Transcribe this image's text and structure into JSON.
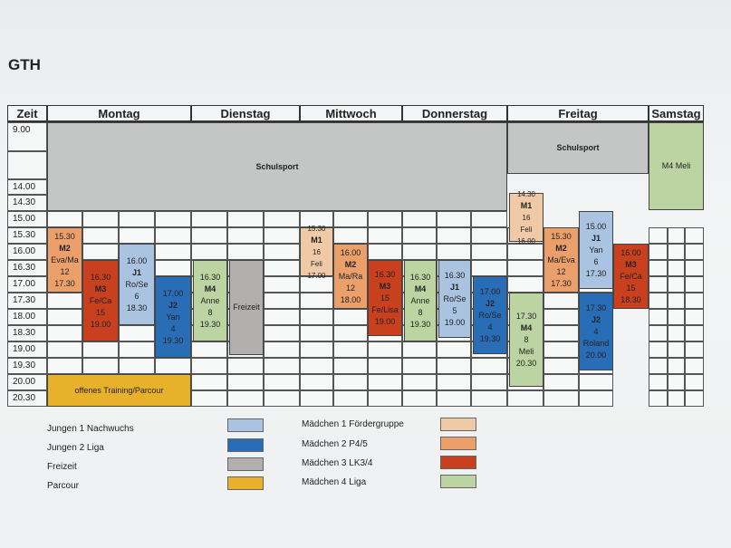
{
  "title": "GTH",
  "header": {
    "zeit": "Zeit",
    "days": [
      "Montag",
      "Dienstag",
      "Mittwoch",
      "Donnerstag",
      "Freitag",
      "Samstag"
    ]
  },
  "times": [
    "9.00",
    "",
    "14.00",
    "14.30",
    "15.00",
    "15.30",
    "16.00",
    "16.30",
    "17.00",
    "17.30",
    "18.00",
    "18.30",
    "19.00",
    "19.30",
    "20.00",
    "20.30"
  ],
  "colors": {
    "j1": "#a9c3e0",
    "j2": "#2a6db7",
    "freizeit": "#b1b0ae",
    "parcour": "#e7b12c",
    "m1": "#f0c9a7",
    "m2": "#eba06c",
    "m3": "#c9401f",
    "m4": "#bcd4a2",
    "schulsport": "#c4c5c5"
  },
  "blocks": {
    "schulsport_main": "Schulsport",
    "schulsport_fri": "Schulsport",
    "sat_m4": "M4 Meli",
    "mon_m2": [
      "15.30",
      "M2",
      "Eva/Ma",
      "12",
      "17.30"
    ],
    "mon_m3": [
      "16.30",
      "M3",
      "Fe/Ca",
      "15",
      "19.00"
    ],
    "mon_j1": [
      "16.00",
      "J1",
      "Ro/Se",
      "6",
      "18.30"
    ],
    "mon_j2": [
      "17.00",
      "J2",
      "Yan",
      "4",
      "19.30"
    ],
    "mon_parcour": "offenes Training/Parcour",
    "tue_m4": [
      "16.30",
      "M4",
      "Anne",
      "8",
      "19.30"
    ],
    "tue_freizeit": "Freizeit",
    "wed_m1": [
      "15.30",
      "M1",
      "16",
      "Feli",
      "17.00"
    ],
    "wed_m2": [
      "16.00",
      "M2",
      "Ma/Ra",
      "12",
      "18.00"
    ],
    "wed_m3": [
      "16.30",
      "M3",
      "15",
      "Fe/Lisa",
      "19.00"
    ],
    "thu_m4": [
      "16.30",
      "M4",
      "Anne",
      "8",
      "19.30"
    ],
    "thu_j1": [
      "16.30",
      "J1",
      "Ro/Se",
      "5",
      "19.00"
    ],
    "thu_j2": [
      "17.00",
      "J2",
      "Ro/Se",
      "4",
      "19.30"
    ],
    "fri_m1": [
      "14.30",
      "M1",
      "16",
      "Feli",
      "16.00"
    ],
    "fri_m2": [
      "15.30",
      "M2",
      "Ma/Eva",
      "12",
      "17.30"
    ],
    "fri_j1": [
      "15.00",
      "J1",
      "Yan",
      "6",
      "17.30"
    ],
    "fri_m3": [
      "16.00",
      "M3",
      "Fe/Ca",
      "15",
      "18.30"
    ],
    "fri_m4": [
      "17.30",
      "M4",
      "8",
      "Meli",
      "20.30"
    ],
    "fri_j2": [
      "17.30",
      "J2",
      "4",
      "Roland",
      "20.00"
    ]
  },
  "legend": {
    "j1": "Jungen 1 Nachwuchs",
    "j2": "Jungen 2 Liga",
    "freizeit": "Freizeit",
    "parcour": "Parcour",
    "m1": "Mädchen 1 Fördergruppe",
    "m2": "Mädchen 2 P4/5",
    "m3": "Mädchen 3 LK3/4",
    "m4": "Mädchen 4 Liga"
  }
}
